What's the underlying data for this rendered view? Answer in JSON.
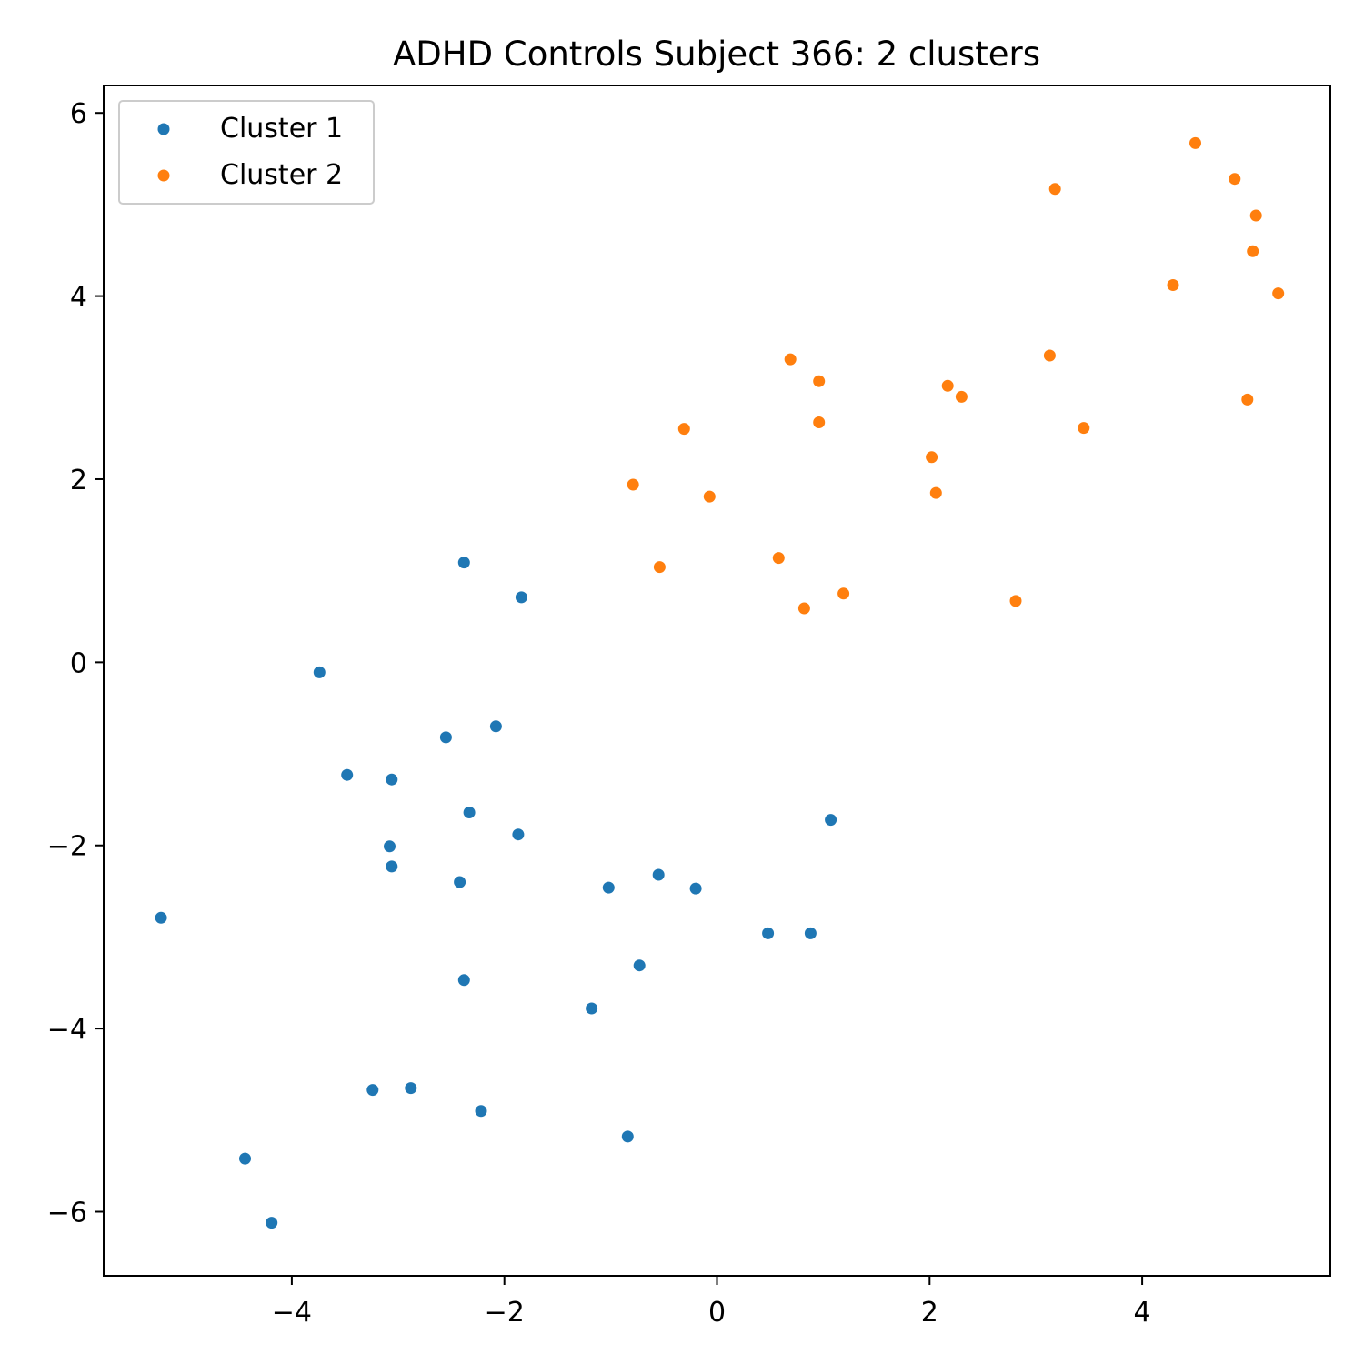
{
  "chart_data": {
    "type": "scatter",
    "title": "ADHD Controls Subject 366: 2 clusters",
    "xlabel": "",
    "ylabel": "",
    "xlim": [
      -5.77,
      5.77
    ],
    "ylim": [
      -6.7,
      6.3
    ],
    "x_ticks": [
      -4,
      -2,
      0,
      2,
      4
    ],
    "y_ticks": [
      -6,
      -4,
      -2,
      0,
      2,
      4,
      6
    ],
    "x_tick_labels": [
      "−4",
      "−2",
      "0",
      "2",
      "4"
    ],
    "y_tick_labels": [
      "−6",
      "−4",
      "−2",
      "0",
      "2",
      "4",
      "6"
    ],
    "grid": false,
    "legend_position": "top-left",
    "series": [
      {
        "name": "Cluster 1",
        "color": "#1f77b4",
        "points": [
          [
            -2.38,
            1.09
          ],
          [
            -1.84,
            0.71
          ],
          [
            -3.74,
            -0.11
          ],
          [
            -2.55,
            -0.82
          ],
          [
            -2.08,
            -0.7
          ],
          [
            -3.48,
            -1.23
          ],
          [
            -3.06,
            -1.28
          ],
          [
            -2.33,
            -1.64
          ],
          [
            -1.87,
            -1.88
          ],
          [
            -3.08,
            -2.01
          ],
          [
            -3.06,
            -2.23
          ],
          [
            -2.42,
            -2.4
          ],
          [
            1.07,
            -1.72
          ],
          [
            -1.02,
            -2.46
          ],
          [
            -0.55,
            -2.32
          ],
          [
            -0.2,
            -2.47
          ],
          [
            -5.23,
            -2.79
          ],
          [
            0.48,
            -2.96
          ],
          [
            0.88,
            -2.96
          ],
          [
            -0.73,
            -3.31
          ],
          [
            -2.38,
            -3.47
          ],
          [
            -1.18,
            -3.78
          ],
          [
            -3.24,
            -4.67
          ],
          [
            -2.88,
            -4.65
          ],
          [
            -2.22,
            -4.9
          ],
          [
            -0.84,
            -5.18
          ],
          [
            -4.44,
            -5.42
          ],
          [
            -4.19,
            -6.12
          ]
        ]
      },
      {
        "name": "Cluster 2",
        "color": "#ff7f0e",
        "points": [
          [
            4.5,
            5.67
          ],
          [
            4.87,
            5.28
          ],
          [
            3.18,
            5.17
          ],
          [
            5.07,
            4.88
          ],
          [
            5.04,
            4.49
          ],
          [
            4.29,
            4.12
          ],
          [
            5.28,
            4.03
          ],
          [
            3.13,
            3.35
          ],
          [
            0.69,
            3.31
          ],
          [
            0.96,
            3.07
          ],
          [
            2.17,
            3.02
          ],
          [
            2.3,
            2.9
          ],
          [
            4.99,
            2.87
          ],
          [
            0.96,
            2.62
          ],
          [
            3.45,
            2.56
          ],
          [
            -0.31,
            2.55
          ],
          [
            2.02,
            2.24
          ],
          [
            -0.79,
            1.94
          ],
          [
            -0.07,
            1.81
          ],
          [
            2.06,
            1.85
          ],
          [
            0.58,
            1.14
          ],
          [
            -0.54,
            1.04
          ],
          [
            1.19,
            0.75
          ],
          [
            0.82,
            0.59
          ],
          [
            2.81,
            0.67
          ]
        ]
      }
    ]
  }
}
